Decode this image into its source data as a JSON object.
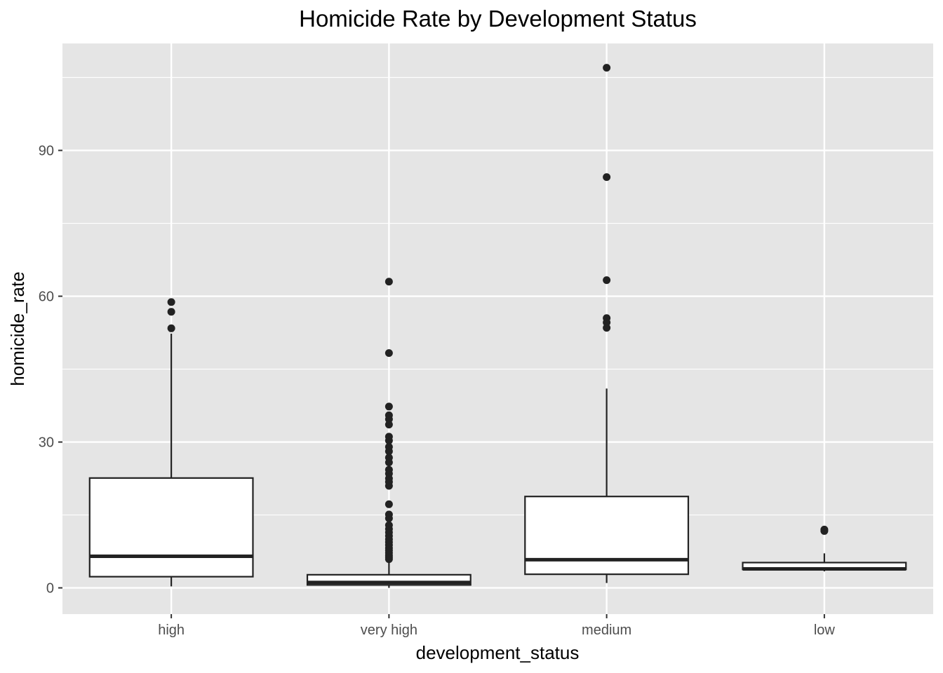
{
  "chart_data": {
    "type": "boxplot",
    "title": "Homicide Rate by Development Status",
    "xlabel": "development_status",
    "ylabel": "homicide_rate",
    "ylim": [
      -5.4,
      112
    ],
    "yticks": [
      0,
      30,
      60,
      90
    ],
    "y_minor_ticks": [
      15,
      45,
      75,
      105
    ],
    "grid": true,
    "panel_color": "#e5e5e5",
    "grid_color": "#ffffff",
    "box_fill": "#ffffff",
    "line_color": "#222222",
    "categories": [
      "high",
      "very high",
      "medium",
      "low"
    ],
    "boxes": [
      {
        "category": "high",
        "whisker_low": 0.3,
        "q1": 2.3,
        "median": 6.5,
        "q3": 22.6,
        "whisker_high": 52.3,
        "outliers": [
          53.4,
          56.8,
          58.8
        ]
      },
      {
        "category": "very high",
        "whisker_low": 0.0,
        "q1": 0.6,
        "median": 1.1,
        "q3": 2.7,
        "whisker_high": 5.3,
        "outliers": [
          5.9,
          6.3,
          6.7,
          7.2,
          7.7,
          8.2,
          8.8,
          9.4,
          10.0,
          10.7,
          11.4,
          12.1,
          12.9,
          14.3,
          15.1,
          17.2,
          21.0,
          21.8,
          22.5,
          23.5,
          24.3,
          25.8,
          26.8,
          28.1,
          29.0,
          30.3,
          31.1,
          33.6,
          34.7,
          35.5,
          37.3,
          48.3,
          63.0
        ]
      },
      {
        "category": "medium",
        "whisker_low": 1.0,
        "q1": 2.8,
        "median": 5.8,
        "q3": 18.8,
        "whisker_high": 41.0,
        "outliers": [
          53.5,
          54.6,
          55.5,
          63.3,
          84.5,
          107.0
        ]
      },
      {
        "category": "low",
        "whisker_low": 3.4,
        "q1": 3.8,
        "median": 3.9,
        "q3": 5.2,
        "whisker_high": 7.1,
        "outliers": [
          11.7,
          12.0
        ]
      }
    ]
  }
}
